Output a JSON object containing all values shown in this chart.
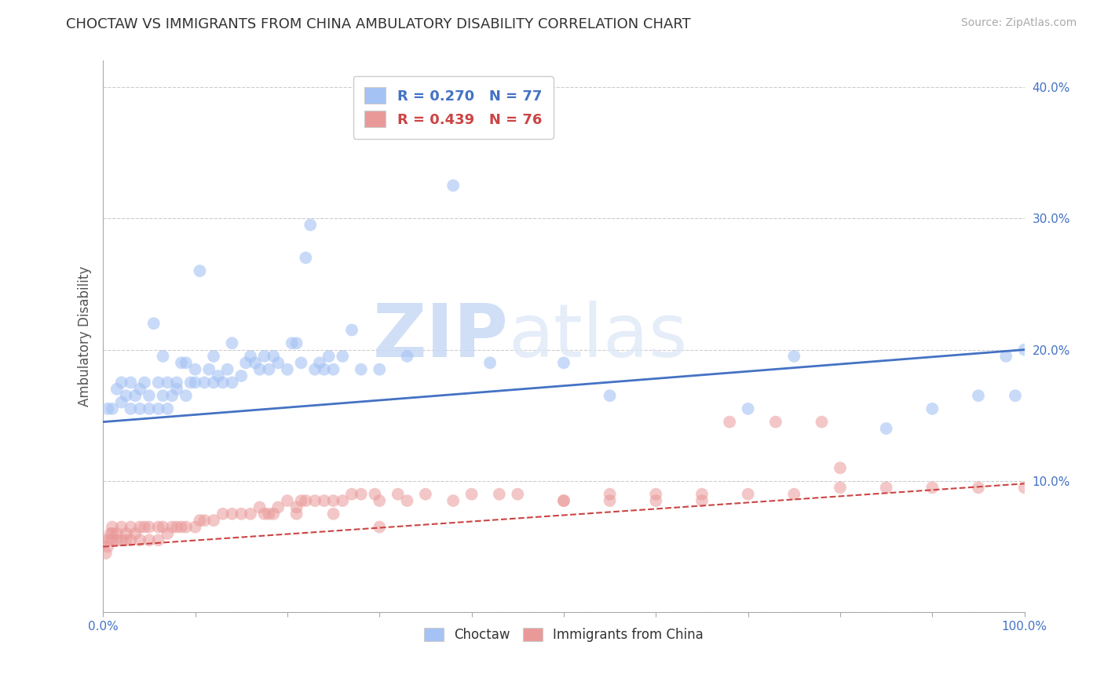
{
  "title": "CHOCTAW VS IMMIGRANTS FROM CHINA AMBULATORY DISABILITY CORRELATION CHART",
  "source": "Source: ZipAtlas.com",
  "ylabel": "Ambulatory Disability",
  "xlim": [
    0,
    1.0
  ],
  "ylim": [
    0,
    0.42
  ],
  "xticks": [
    0.0,
    0.1,
    0.2,
    0.3,
    0.4,
    0.5,
    0.6,
    0.7,
    0.8,
    0.9,
    1.0
  ],
  "xticklabels_show": [
    "0.0%",
    "",
    "",
    "",
    "",
    "",
    "",
    "",
    "",
    "",
    "100.0%"
  ],
  "yticks": [
    0.0,
    0.1,
    0.2,
    0.3,
    0.4
  ],
  "yticklabels": [
    "",
    "10.0%",
    "20.0%",
    "30.0%",
    "40.0%"
  ],
  "blue_color": "#a4c2f4",
  "pink_color": "#ea9999",
  "blue_line_color": "#4472c4",
  "pink_line_color": "#cc4444",
  "legend_R_blue": "R = 0.270",
  "legend_N_blue": "N = 77",
  "legend_R_pink": "R = 0.439",
  "legend_N_pink": "N = 76",
  "watermark_zip": "ZIP",
  "watermark_atlas": "atlas",
  "blue_scatter_x": [
    0.005,
    0.01,
    0.015,
    0.02,
    0.02,
    0.025,
    0.03,
    0.03,
    0.035,
    0.04,
    0.04,
    0.045,
    0.05,
    0.05,
    0.055,
    0.06,
    0.06,
    0.065,
    0.065,
    0.07,
    0.07,
    0.075,
    0.08,
    0.08,
    0.085,
    0.09,
    0.09,
    0.095,
    0.1,
    0.1,
    0.105,
    0.11,
    0.115,
    0.12,
    0.12,
    0.125,
    0.13,
    0.135,
    0.14,
    0.14,
    0.15,
    0.155,
    0.16,
    0.165,
    0.17,
    0.175,
    0.18,
    0.185,
    0.19,
    0.2,
    0.205,
    0.21,
    0.215,
    0.22,
    0.225,
    0.23,
    0.235,
    0.24,
    0.245,
    0.25,
    0.26,
    0.27,
    0.28,
    0.3,
    0.33,
    0.38,
    0.42,
    0.5,
    0.55,
    0.7,
    0.75,
    0.85,
    0.9,
    0.95,
    0.98,
    0.99,
    1.0
  ],
  "blue_scatter_y": [
    0.155,
    0.155,
    0.17,
    0.16,
    0.175,
    0.165,
    0.155,
    0.175,
    0.165,
    0.155,
    0.17,
    0.175,
    0.155,
    0.165,
    0.22,
    0.175,
    0.155,
    0.165,
    0.195,
    0.175,
    0.155,
    0.165,
    0.17,
    0.175,
    0.19,
    0.165,
    0.19,
    0.175,
    0.175,
    0.185,
    0.26,
    0.175,
    0.185,
    0.175,
    0.195,
    0.18,
    0.175,
    0.185,
    0.175,
    0.205,
    0.18,
    0.19,
    0.195,
    0.19,
    0.185,
    0.195,
    0.185,
    0.195,
    0.19,
    0.185,
    0.205,
    0.205,
    0.19,
    0.27,
    0.295,
    0.185,
    0.19,
    0.185,
    0.195,
    0.185,
    0.195,
    0.215,
    0.185,
    0.185,
    0.195,
    0.325,
    0.19,
    0.19,
    0.165,
    0.155,
    0.195,
    0.14,
    0.155,
    0.165,
    0.195,
    0.165,
    0.2
  ],
  "pink_scatter_x": [
    0.0,
    0.003,
    0.005,
    0.007,
    0.008,
    0.01,
    0.01,
    0.01,
    0.015,
    0.015,
    0.02,
    0.02,
    0.025,
    0.025,
    0.03,
    0.03,
    0.035,
    0.04,
    0.04,
    0.045,
    0.05,
    0.05,
    0.06,
    0.06,
    0.065,
    0.07,
    0.075,
    0.08,
    0.085,
    0.09,
    0.1,
    0.105,
    0.11,
    0.12,
    0.13,
    0.14,
    0.15,
    0.16,
    0.17,
    0.175,
    0.18,
    0.185,
    0.19,
    0.2,
    0.21,
    0.215,
    0.22,
    0.23,
    0.24,
    0.25,
    0.26,
    0.27,
    0.28,
    0.295,
    0.3,
    0.32,
    0.33,
    0.35,
    0.38,
    0.4,
    0.43,
    0.45,
    0.5,
    0.55,
    0.6,
    0.65,
    0.7,
    0.75,
    0.8,
    0.85,
    0.9,
    0.95,
    1.0,
    0.21,
    0.25,
    0.3
  ],
  "pink_scatter_y": [
    0.055,
    0.045,
    0.05,
    0.055,
    0.06,
    0.055,
    0.06,
    0.065,
    0.055,
    0.06,
    0.055,
    0.065,
    0.055,
    0.06,
    0.055,
    0.065,
    0.06,
    0.055,
    0.065,
    0.065,
    0.055,
    0.065,
    0.055,
    0.065,
    0.065,
    0.06,
    0.065,
    0.065,
    0.065,
    0.065,
    0.065,
    0.07,
    0.07,
    0.07,
    0.075,
    0.075,
    0.075,
    0.075,
    0.08,
    0.075,
    0.075,
    0.075,
    0.08,
    0.085,
    0.08,
    0.085,
    0.085,
    0.085,
    0.085,
    0.085,
    0.085,
    0.09,
    0.09,
    0.09,
    0.085,
    0.09,
    0.085,
    0.09,
    0.085,
    0.09,
    0.09,
    0.09,
    0.085,
    0.09,
    0.09,
    0.09,
    0.09,
    0.09,
    0.095,
    0.095,
    0.095,
    0.095,
    0.095,
    0.075,
    0.075,
    0.065
  ],
  "blue_line_y_start": 0.145,
  "blue_line_y_end": 0.2,
  "pink_line_y_start": 0.05,
  "pink_line_y_end": 0.098,
  "pink_extra_x": [
    0.5,
    0.55,
    0.6,
    0.65,
    0.68,
    0.73,
    0.78,
    0.8
  ],
  "pink_extra_y": [
    0.085,
    0.085,
    0.085,
    0.085,
    0.145,
    0.145,
    0.145,
    0.11
  ]
}
